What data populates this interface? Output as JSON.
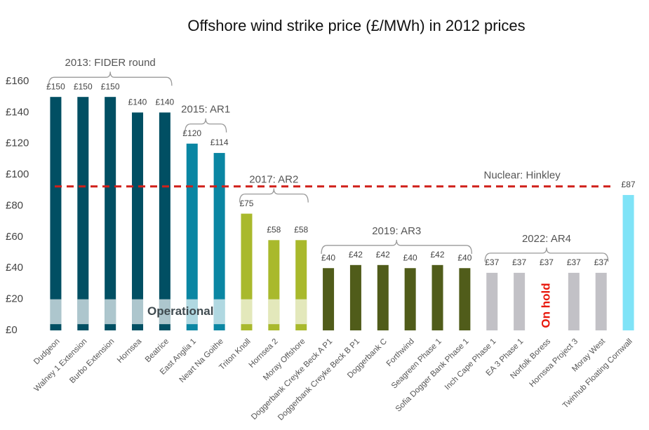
{
  "chart_data": {
    "type": "bar",
    "title": "Offshore wind strike price  (£/MWh) in 2012 prices",
    "categories": [
      "Dudgeon",
      "Walney 1 Extension",
      "Burbo Extension",
      "Hornsea",
      "Beatrice",
      "East Anglia 1",
      "Neart Na Goithe",
      "Triton Knoll",
      "Hornsea 2",
      "Moray Offshore",
      "Doggerbank Creyke Beck A P1",
      "Doggerbank Creyke Beck B P1",
      "Doggerbank C",
      "Forthwind",
      "Seagreen Phase 1",
      "Sofia Dogger Bank Phase 1",
      "Inch Cape Phase 1",
      "EA 3 Phase 1",
      "Norfolk Boress",
      "Hornsea Project 3",
      "Moray West",
      "Twinhub Floating Cornwall"
    ],
    "values": [
      150,
      150,
      150,
      140,
      140,
      120,
      114,
      75,
      58,
      58,
      40,
      42,
      42,
      40,
      42,
      40,
      37,
      37,
      37,
      37,
      37,
      87
    ],
    "value_labels": [
      "£150",
      "£150",
      "£150",
      "£140",
      "£140",
      "£120",
      "£114",
      "£75",
      "£58",
      "£58",
      "£40",
      "£42",
      "£42",
      "£40",
      "£42",
      "£40",
      "£37",
      "£37",
      "£37",
      "£37",
      "£37",
      "£87"
    ],
    "colors": [
      "#014f63",
      "#014f63",
      "#014f63",
      "#014f63",
      "#014f63",
      "#0a86a3",
      "#0a86a3",
      "#a9b92c",
      "#a9b92c",
      "#a9b92c",
      "#505c1a",
      "#505c1a",
      "#505c1a",
      "#505c1a",
      "#505c1a",
      "#505c1a",
      "#c2c1c6",
      "#c2c1c6",
      "#c2c1c6",
      "#c2c1c6",
      "#c2c1c6",
      "#7fe3f7"
    ],
    "ylim": [
      0,
      160
    ],
    "yticks": [
      {
        "value": 0,
        "label": "£0"
      },
      {
        "value": 20,
        "label": "£20"
      },
      {
        "value": 40,
        "label": "£40"
      },
      {
        "value": 60,
        "label": "£60"
      },
      {
        "value": 80,
        "label": "£80"
      },
      {
        "value": 100,
        "label": "£100"
      },
      {
        "value": 120,
        "label": "£120"
      },
      {
        "value": 140,
        "label": "£140"
      },
      {
        "value": 160,
        "label": "£160"
      }
    ],
    "reference_line": {
      "label": "Nuclear: Hinkley",
      "value": 92.5,
      "color": "#d0201a"
    },
    "operational_band": {
      "label": "Operational",
      "range": [
        4,
        20
      ],
      "bars": [
        0,
        1,
        2,
        3,
        4,
        5,
        6,
        7,
        8,
        9
      ]
    },
    "on_hold": {
      "label": "On hold",
      "index": 18,
      "color": "#e8180c"
    },
    "groups": [
      {
        "label": "2013: FIDER round",
        "start": 0,
        "end": 4
      },
      {
        "label": "2015: AR1",
        "start": 5,
        "end": 6
      },
      {
        "label": "2017: AR2",
        "start": 7,
        "end": 9
      },
      {
        "label": "2019: AR3",
        "start": 10,
        "end": 15
      },
      {
        "label": "2022: AR4",
        "start": 16,
        "end": 20
      }
    ]
  }
}
